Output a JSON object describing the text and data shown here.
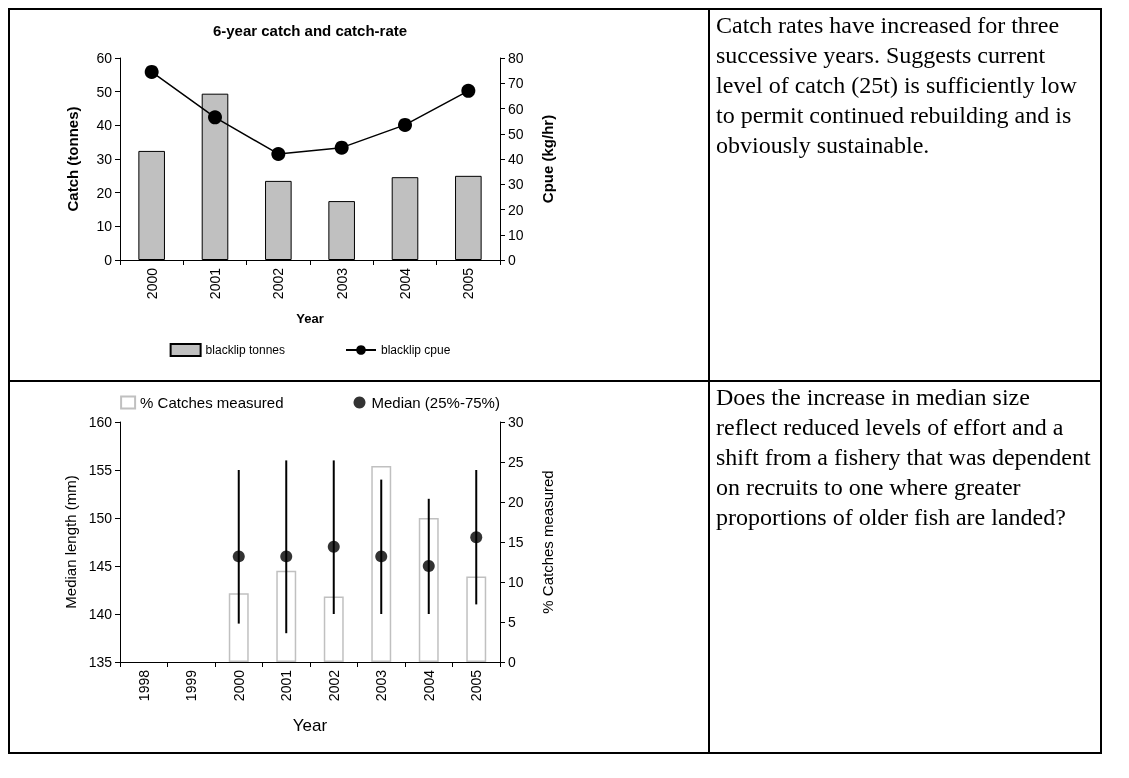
{
  "chart_data": [
    {
      "type": "bar",
      "title": "6-year catch and catch-rate",
      "xlabel": "Year",
      "ylabel": "Catch (tonnes)",
      "y2label": "Cpue (kg/hr)",
      "categories": [
        "2000",
        "2001",
        "2002",
        "2003",
        "2004",
        "2005"
      ],
      "series": [
        {
          "name": "blacklip tonnes",
          "type": "bar",
          "color": "#c0c0c0",
          "values": [
            32.4,
            49.4,
            23.5,
            17.5,
            24.6,
            25.0
          ]
        },
        {
          "name": "blacklip cpue",
          "type": "line",
          "axis": "y2",
          "color": "#000000",
          "marker": "circle",
          "values": [
            74.5,
            56.5,
            42,
            44.5,
            53.5,
            67
          ]
        }
      ],
      "ylim": [
        0,
        60
      ],
      "yticks": [
        0,
        10,
        20,
        30,
        40,
        50,
        60
      ],
      "y2lim": [
        0,
        80
      ],
      "y2ticks": [
        0,
        10,
        20,
        30,
        40,
        50,
        60,
        70,
        80
      ],
      "legend": "bottom",
      "grid": false
    },
    {
      "type": "other",
      "annotations": [
        "Catch rates have increased for three successive years. Suggests current level of catch (25t) is sufficiently low to permit continued rebuilding and is obviously sustainable."
      ]
    },
    {
      "type": "bar",
      "xlabel": "Year",
      "ylabel": "Median length (mm)",
      "y2label": "% Catches measured",
      "categories": [
        "1998",
        "1999",
        "2000",
        "2001",
        "2002",
        "2003",
        "2004",
        "2005"
      ],
      "series": [
        {
          "name": "% Catches measured",
          "type": "bar",
          "axis": "y2",
          "color": "#c0c0c0",
          "values": [
            null,
            null,
            8.6,
            11.4,
            8.2,
            24.5,
            18,
            10.7
          ]
        },
        {
          "name": "Median (25%-75%)",
          "type": "scatter",
          "color": "#000000",
          "marker": "circle",
          "values": [
            null,
            null,
            146,
            146,
            147,
            146,
            145,
            148
          ],
          "errors": [
            null,
            null,
            [
              139,
              155
            ],
            [
              138,
              156
            ],
            [
              140,
              156
            ],
            [
              140,
              154
            ],
            [
              140,
              152
            ],
            [
              141,
              155
            ]
          ]
        }
      ],
      "ylim": [
        135,
        160
      ],
      "yticks": [
        135,
        140,
        145,
        150,
        155,
        160
      ],
      "y2lim": [
        0,
        30
      ],
      "y2ticks": [
        0,
        5,
        10,
        15,
        20,
        25,
        30
      ],
      "legend": "top",
      "grid": false
    },
    {
      "type": "other",
      "annotations": [
        "Does the increase in median size reflect reduced levels of effort and a shift from a fishery that was dependent on recruits to one where greater proportions of older fish are landed?"
      ]
    }
  ]
}
